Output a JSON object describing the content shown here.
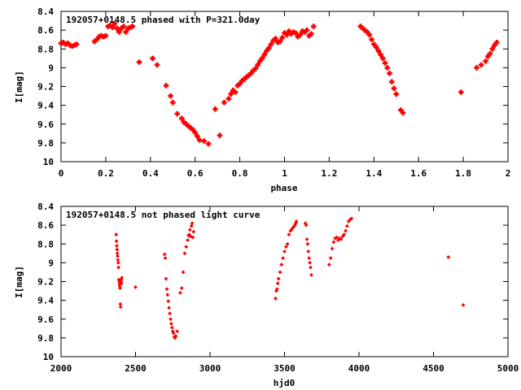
{
  "chart_data": [
    {
      "type": "scatter",
      "title": "192057+0148.5 phased with P=321.0day",
      "xlabel": "phase",
      "ylabel": "I[mag]",
      "xlim": [
        0,
        2
      ],
      "ylim": [
        8.4,
        10
      ],
      "y_inverted": true,
      "x_ticks": [
        "0",
        "0.2",
        "0.4",
        "0.6",
        "0.8",
        "1",
        "1.2",
        "1.4",
        "1.6",
        "1.8",
        "2"
      ],
      "y_ticks": [
        "8.4",
        "8.6",
        "8.8",
        "9",
        "9.2",
        "9.4",
        "9.6",
        "9.8",
        "10"
      ],
      "grid": false,
      "marker_color": "#ff0000",
      "series": [
        {
          "x": [
            0.0,
            0.01,
            0.02,
            0.03,
            0.04,
            0.05,
            0.06,
            0.07,
            0.15,
            0.16,
            0.17,
            0.18,
            0.19,
            0.2,
            0.21,
            0.22,
            0.23,
            0.24,
            0.25,
            0.26,
            0.27,
            0.28,
            0.29,
            0.3,
            0.31,
            0.32,
            0.35,
            0.41,
            0.43,
            0.47,
            0.49,
            0.5,
            0.52,
            0.54,
            0.55,
            0.56,
            0.57,
            0.58,
            0.59,
            0.6,
            0.61,
            0.62,
            0.64,
            0.66,
            0.69,
            0.71,
            0.73,
            0.75,
            0.76,
            0.77,
            0.78,
            0.79,
            0.8,
            0.81,
            0.82,
            0.83,
            0.84,
            0.85,
            0.86,
            0.87,
            0.88,
            0.89,
            0.9,
            0.91,
            0.92,
            0.93,
            0.94,
            0.95,
            0.96,
            0.97,
            0.98,
            0.99,
            1.0,
            1.01,
            1.02,
            1.03,
            1.04,
            1.05,
            1.06,
            1.07,
            1.08,
            1.09,
            1.1,
            1.11,
            1.12,
            1.13,
            1.34,
            1.35,
            1.36,
            1.37,
            1.38,
            1.39,
            1.4,
            1.41,
            1.42,
            1.43,
            1.44,
            1.45,
            1.46,
            1.47,
            1.48,
            1.49,
            1.5,
            1.52,
            1.53,
            1.79,
            1.86,
            1.88,
            1.9,
            1.91,
            1.92,
            1.93,
            1.94,
            1.95
          ],
          "y": [
            8.74,
            8.73,
            8.75,
            8.74,
            8.76,
            8.77,
            8.76,
            8.75,
            8.72,
            8.7,
            8.67,
            8.66,
            8.67,
            8.66,
            8.56,
            8.55,
            8.57,
            8.53,
            8.58,
            8.62,
            8.58,
            8.56,
            8.62,
            8.58,
            8.57,
            8.56,
            8.94,
            8.9,
            8.97,
            9.19,
            9.3,
            9.37,
            9.49,
            9.54,
            9.58,
            9.6,
            9.62,
            9.64,
            9.66,
            9.69,
            9.73,
            9.77,
            9.78,
            9.81,
            9.44,
            9.72,
            9.37,
            9.33,
            9.28,
            9.24,
            9.26,
            9.19,
            9.17,
            9.14,
            9.12,
            9.1,
            9.08,
            9.06,
            9.03,
            9.01,
            8.97,
            8.93,
            8.9,
            8.86,
            8.82,
            8.79,
            8.75,
            8.71,
            8.69,
            8.73,
            8.72,
            8.68,
            8.63,
            8.65,
            8.61,
            8.64,
            8.62,
            8.63,
            8.67,
            8.65,
            8.61,
            8.62,
            8.6,
            8.66,
            8.64,
            8.56,
            8.56,
            8.58,
            8.6,
            8.62,
            8.65,
            8.7,
            8.75,
            8.78,
            8.82,
            8.86,
            8.9,
            8.95,
            9.0,
            9.06,
            9.15,
            9.22,
            9.28,
            9.45,
            9.48,
            9.26,
            9.0,
            8.97,
            8.93,
            8.88,
            8.85,
            8.8,
            8.76,
            8.73
          ]
        }
      ]
    },
    {
      "type": "scatter",
      "title": "192057+0148.5 not phased light curve",
      "xlabel": "hjd0",
      "ylabel": "I[mag]",
      "xlim": [
        2000,
        5000
      ],
      "ylim": [
        8.4,
        10
      ],
      "y_inverted": true,
      "x_ticks": [
        "2000",
        "2500",
        "3000",
        "3500",
        "4000",
        "4500",
        "5000"
      ],
      "y_ticks": [
        "8.4",
        "8.6",
        "8.8",
        "9",
        "9.2",
        "9.4",
        "9.6",
        "9.8",
        "10"
      ],
      "grid": false,
      "marker_color": "#ff0000",
      "series": [
        {
          "x": [
            2370,
            2372,
            2374,
            2376,
            2378,
            2380,
            2382,
            2384,
            2386,
            2388,
            2390,
            2392,
            2394,
            2396,
            2398,
            2400,
            2402,
            2404,
            2406,
            2408,
            2500,
            2695,
            2700,
            2705,
            2710,
            2715,
            2720,
            2725,
            2730,
            2735,
            2740,
            2745,
            2750,
            2755,
            2760,
            2765,
            2770,
            2780,
            2800,
            2810,
            2820,
            2830,
            2840,
            2850,
            2855,
            2860,
            2865,
            2870,
            2875,
            2880,
            2885,
            2890,
            3440,
            3445,
            3450,
            3455,
            3460,
            3470,
            3480,
            3490,
            3500,
            3510,
            3520,
            3530,
            3540,
            3550,
            3560,
            3570,
            3575,
            3580,
            3640,
            3645,
            3650,
            3655,
            3660,
            3665,
            3670,
            3675,
            3680,
            3800,
            3810,
            3820,
            3830,
            3840,
            3850,
            3860,
            3870,
            3880,
            3890,
            3900,
            3910,
            3920,
            3930,
            3940,
            3950,
            4600,
            4700
          ],
          "y": [
            8.7,
            8.77,
            8.82,
            8.86,
            8.9,
            8.93,
            8.97,
            9.0,
            9.05,
            9.18,
            9.2,
            9.23,
            9.25,
            9.27,
            9.44,
            9.47,
            9.2,
            9.18,
            9.22,
            9.16,
            9.26,
            8.91,
            8.95,
            9.17,
            9.28,
            9.34,
            9.41,
            9.48,
            9.54,
            9.6,
            9.65,
            9.69,
            9.73,
            9.75,
            9.79,
            9.8,
            9.78,
            9.73,
            9.32,
            9.27,
            9.1,
            8.9,
            8.83,
            8.76,
            8.71,
            8.7,
            8.65,
            8.72,
            8.61,
            8.58,
            8.73,
            8.67,
            9.38,
            9.3,
            9.28,
            9.22,
            9.17,
            9.1,
            9.02,
            8.95,
            8.88,
            8.83,
            8.8,
            8.7,
            8.66,
            8.64,
            8.62,
            8.6,
            8.58,
            8.56,
            8.58,
            8.6,
            8.75,
            8.8,
            8.88,
            8.95,
            9.0,
            9.05,
            9.13,
            9.02,
            8.95,
            8.85,
            8.78,
            8.74,
            8.73,
            8.76,
            8.74,
            8.75,
            8.72,
            8.7,
            8.66,
            8.61,
            8.56,
            8.54,
            8.53,
            8.94,
            9.45
          ]
        }
      ]
    }
  ]
}
